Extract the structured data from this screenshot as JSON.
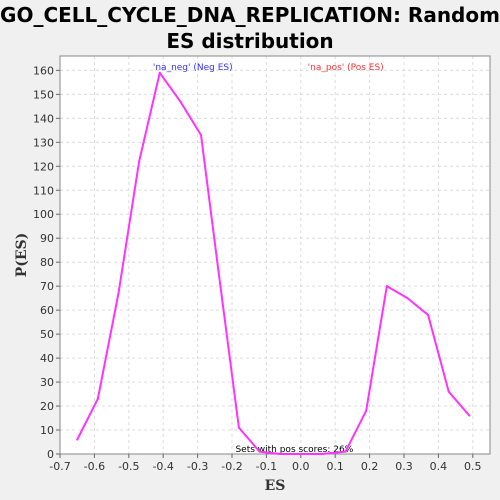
{
  "chart_data": {
    "type": "line",
    "title_line1": "GO_CELL_CYCLE_DNA_REPLICATION: Random",
    "title_line2": "ES distribution",
    "xlabel": "ES",
    "ylabel": "P(ES)",
    "xlim": [
      -0.7,
      0.55
    ],
    "ylim": [
      0,
      166
    ],
    "xticks": [
      -0.7,
      -0.6,
      -0.5,
      -0.4,
      -0.3,
      -0.2,
      -0.1,
      0.0,
      0.1,
      0.2,
      0.3,
      0.4,
      0.5
    ],
    "xtick_labels": [
      "-0.7",
      "-0.6",
      "-0.5",
      "-0.4",
      "-0.3",
      "-0.2",
      "-0.1",
      "0.0",
      "0.1",
      "0.2",
      "0.3",
      "0.4",
      "0.5"
    ],
    "yticks": [
      0,
      10,
      20,
      30,
      40,
      50,
      60,
      70,
      80,
      90,
      100,
      110,
      120,
      130,
      140,
      150,
      160
    ],
    "grid": true,
    "legend": [
      {
        "label": "'na_neg' (Neg ES)",
        "color": "#3333ff"
      },
      {
        "label": "'na_pos' (Pos ES)",
        "color": "#ff3333"
      }
    ],
    "annotation": "Sets with pos scores: 26%",
    "series": [
      {
        "color": "#ff33ff",
        "x": [
          -0.65,
          -0.59,
          -0.53,
          -0.47,
          -0.41,
          -0.35,
          -0.29,
          -0.24,
          -0.18,
          -0.12,
          -0.06,
          0.0,
          0.06,
          0.13,
          0.19,
          0.25,
          0.31,
          0.37,
          0.43,
          0.49
        ],
        "y": [
          6,
          23,
          67,
          122,
          159,
          147,
          133,
          77,
          11,
          1,
          0,
          0,
          0,
          1,
          18,
          70,
          65,
          58,
          26,
          16
        ]
      }
    ]
  }
}
